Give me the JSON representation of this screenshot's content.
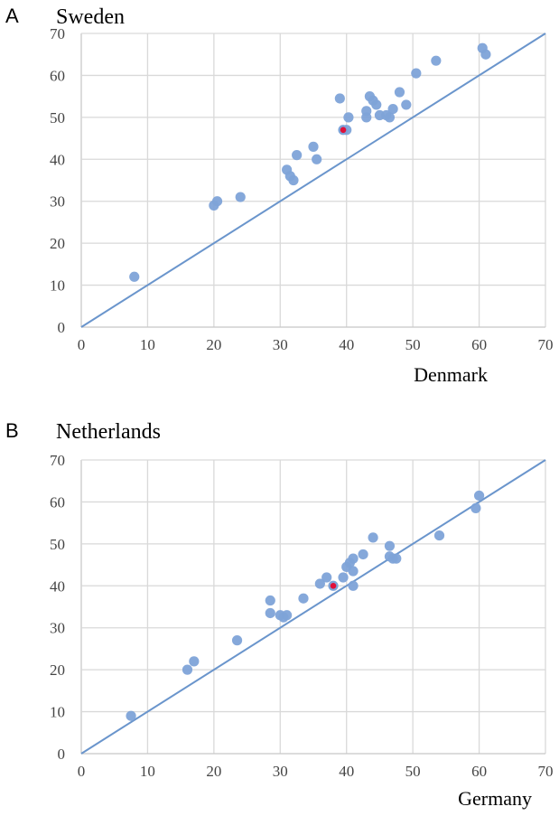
{
  "chart_data": [
    {
      "type": "scatter",
      "panel": "A",
      "title": "Sweden",
      "xlabel": "Denmark",
      "ylabel": "",
      "xlim": [
        0,
        70
      ],
      "ylim": [
        0,
        70
      ],
      "xticks": [
        "0",
        "10",
        "20",
        "30",
        "40",
        "50",
        "60",
        "70"
      ],
      "yticks": [
        "0",
        "10",
        "20",
        "30",
        "40",
        "50",
        "60",
        "70"
      ],
      "grid": true,
      "reference_line": "y = x",
      "colors": {
        "points": "#7ea3d8",
        "highlight": "#e0103a",
        "line": "#6a95cc"
      },
      "points": [
        {
          "x": 8,
          "y": 12
        },
        {
          "x": 20,
          "y": 29
        },
        {
          "x": 20.5,
          "y": 30
        },
        {
          "x": 24,
          "y": 31
        },
        {
          "x": 31,
          "y": 37.5
        },
        {
          "x": 31.5,
          "y": 36
        },
        {
          "x": 32,
          "y": 35
        },
        {
          "x": 32.5,
          "y": 41
        },
        {
          "x": 35,
          "y": 43
        },
        {
          "x": 35.5,
          "y": 40
        },
        {
          "x": 39,
          "y": 54.5
        },
        {
          "x": 40,
          "y": 47
        },
        {
          "x": 40.3,
          "y": 50
        },
        {
          "x": 43,
          "y": 50
        },
        {
          "x": 43,
          "y": 51.5
        },
        {
          "x": 43.5,
          "y": 55
        },
        {
          "x": 44,
          "y": 54
        },
        {
          "x": 44.5,
          "y": 53
        },
        {
          "x": 45,
          "y": 50.5
        },
        {
          "x": 46,
          "y": 50.5
        },
        {
          "x": 46.5,
          "y": 50
        },
        {
          "x": 47,
          "y": 52
        },
        {
          "x": 48,
          "y": 56
        },
        {
          "x": 49,
          "y": 53
        },
        {
          "x": 50.5,
          "y": 60.5
        },
        {
          "x": 53.5,
          "y": 63.5
        },
        {
          "x": 60.5,
          "y": 66.5
        },
        {
          "x": 61,
          "y": 65
        }
      ],
      "highlight": {
        "x": 39.5,
        "y": 47
      }
    },
    {
      "type": "scatter",
      "panel": "B",
      "title": "Netherlands",
      "xlabel": "Germany",
      "ylabel": "",
      "xlim": [
        0,
        70
      ],
      "ylim": [
        0,
        70
      ],
      "xticks": [
        "0",
        "10",
        "20",
        "30",
        "40",
        "50",
        "60",
        "70"
      ],
      "yticks": [
        "0",
        "10",
        "20",
        "30",
        "40",
        "50",
        "60",
        "70"
      ],
      "grid": true,
      "reference_line": "y = x",
      "colors": {
        "points": "#7ea3d8",
        "highlight": "#e0103a",
        "line": "#6a95cc"
      },
      "points": [
        {
          "x": 7.5,
          "y": 9
        },
        {
          "x": 16,
          "y": 20
        },
        {
          "x": 17,
          "y": 22
        },
        {
          "x": 23.5,
          "y": 27
        },
        {
          "x": 28.5,
          "y": 36.5
        },
        {
          "x": 28.5,
          "y": 33.5
        },
        {
          "x": 30,
          "y": 33
        },
        {
          "x": 30.5,
          "y": 32.5
        },
        {
          "x": 31,
          "y": 33
        },
        {
          "x": 33.5,
          "y": 37
        },
        {
          "x": 36,
          "y": 40.5
        },
        {
          "x": 37,
          "y": 42
        },
        {
          "x": 39.5,
          "y": 42
        },
        {
          "x": 40,
          "y": 44.5
        },
        {
          "x": 40.5,
          "y": 45.5
        },
        {
          "x": 41,
          "y": 46.5
        },
        {
          "x": 41,
          "y": 43.5
        },
        {
          "x": 41,
          "y": 40
        },
        {
          "x": 42.5,
          "y": 47.5
        },
        {
          "x": 44,
          "y": 51.5
        },
        {
          "x": 46.5,
          "y": 49.5
        },
        {
          "x": 46.5,
          "y": 47
        },
        {
          "x": 47,
          "y": 46.5
        },
        {
          "x": 47.5,
          "y": 46.5
        },
        {
          "x": 54,
          "y": 52
        },
        {
          "x": 59.5,
          "y": 58.5
        },
        {
          "x": 60,
          "y": 61.5
        }
      ],
      "highlight": {
        "x": 38,
        "y": 40
      }
    }
  ]
}
